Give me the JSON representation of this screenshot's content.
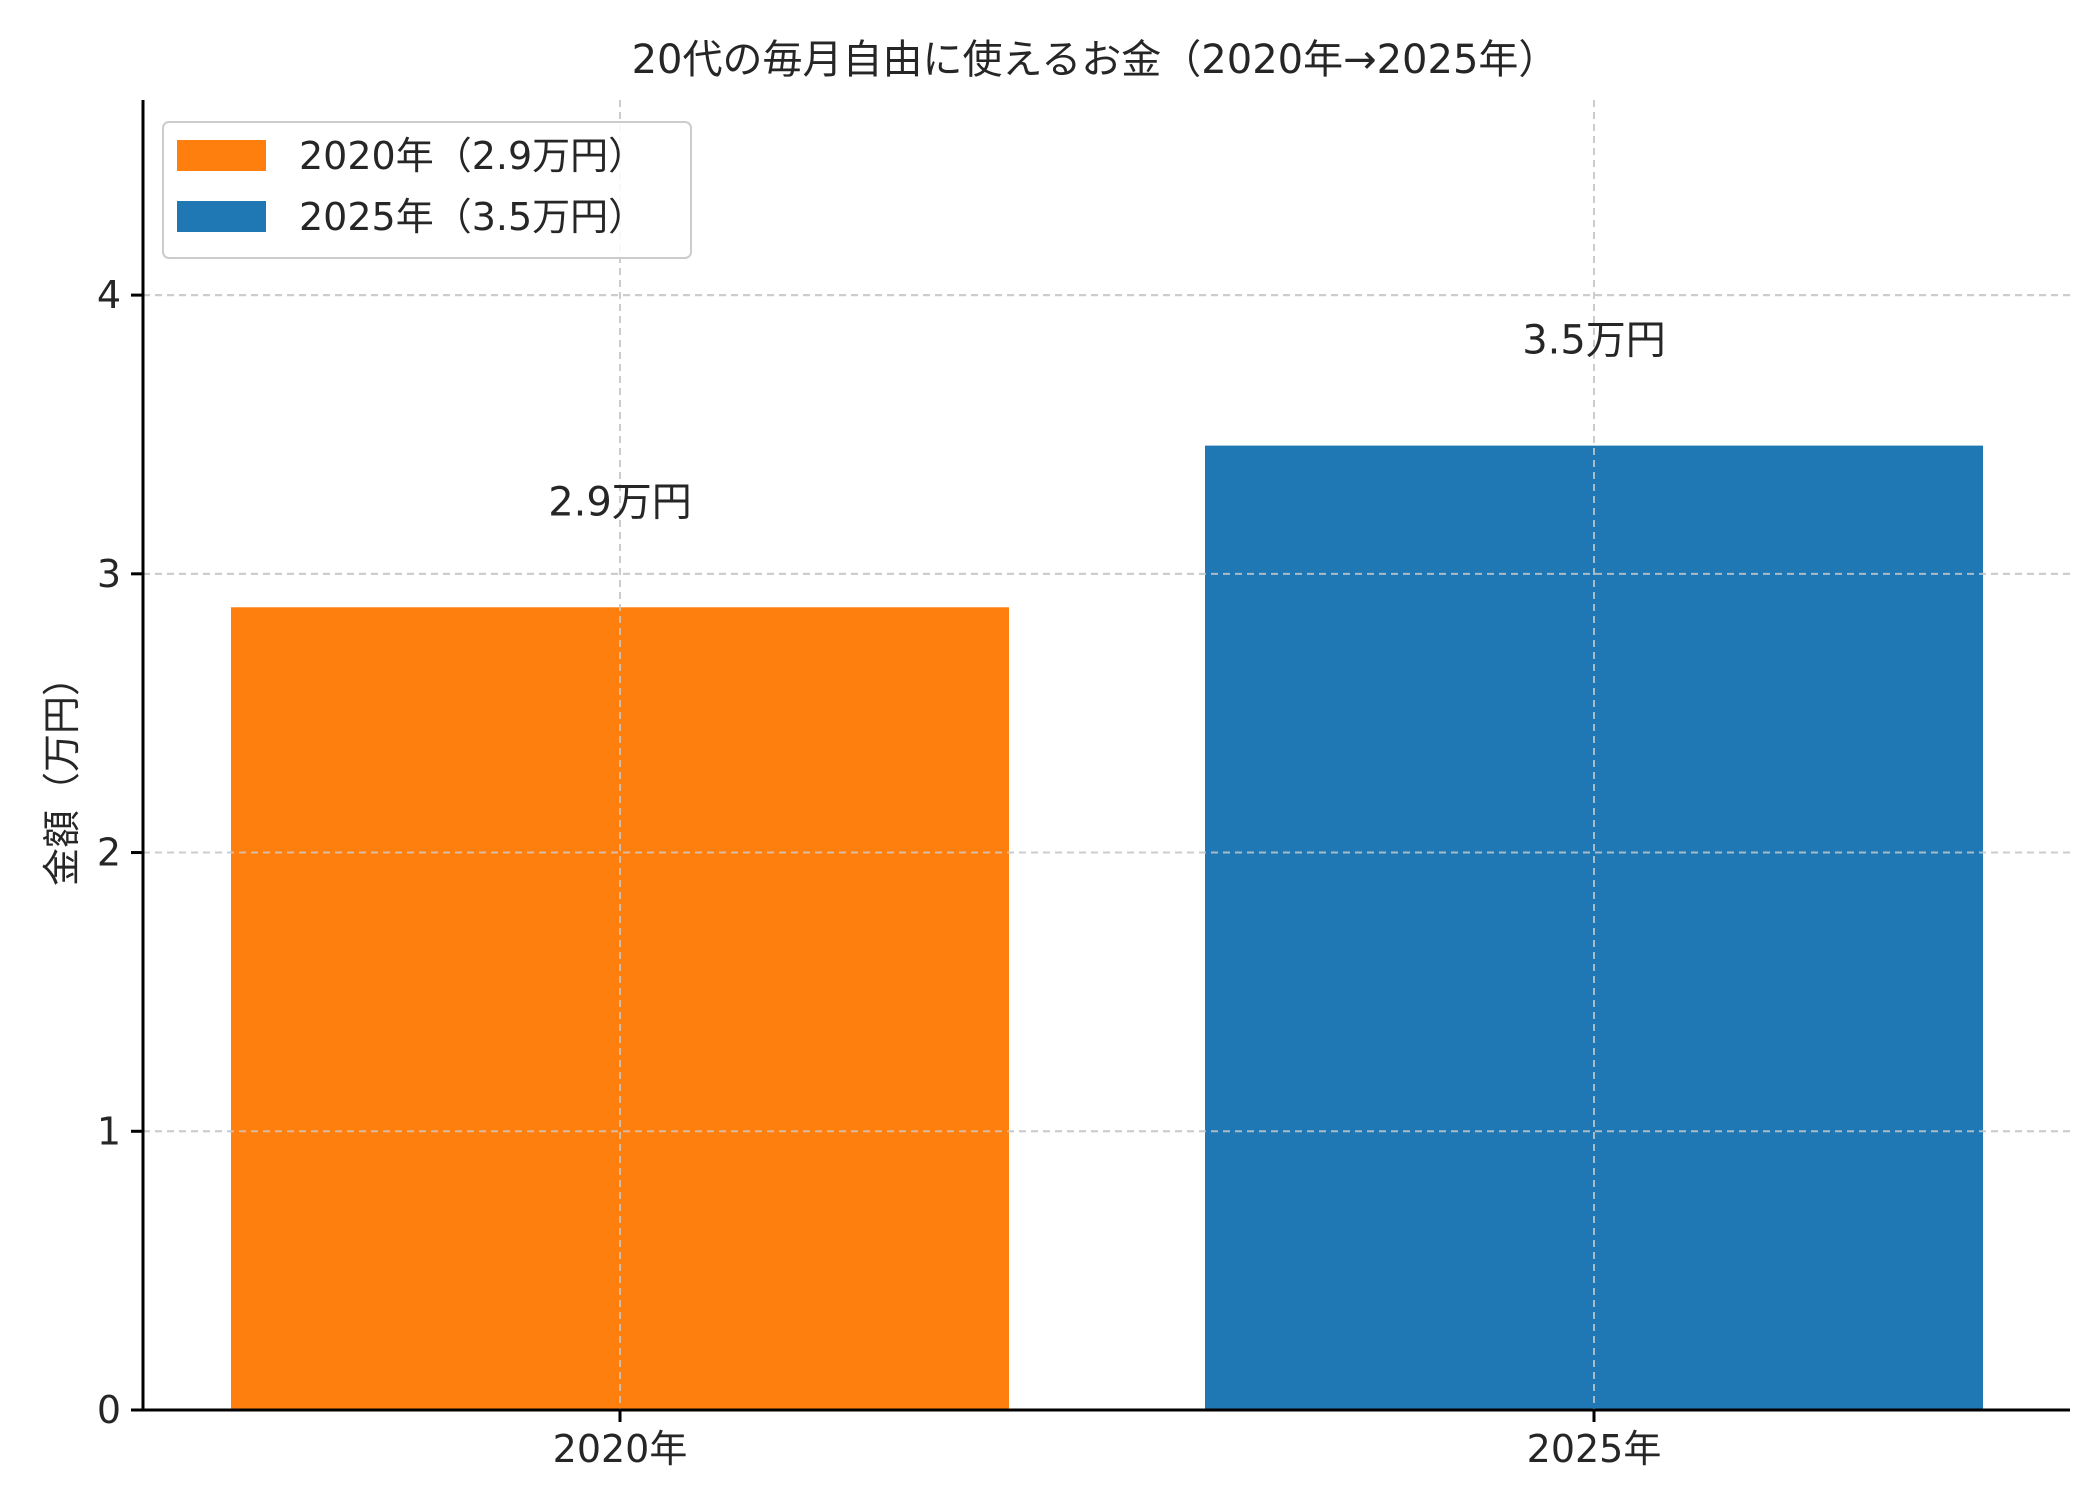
{
  "chart_data": {
    "type": "bar",
    "title": "20代の毎月自由に使えるお金（2020年→2025年）",
    "xlabel": "",
    "ylabel": "金額（万円）",
    "categories": [
      "2020年",
      "2025年"
    ],
    "values": [
      2.88,
      3.46
    ],
    "data_labels": [
      "2.9万円",
      "3.5万円"
    ],
    "colors": [
      "#ff7f0e",
      "#1f77b4"
    ],
    "ylim": [
      0,
      4.7
    ],
    "yticks": [
      0,
      1,
      2,
      3,
      4
    ],
    "grid": true,
    "legend": {
      "placement": "top-left",
      "entries": [
        {
          "label": "2020年（2.9万円）",
          "color": "#ff7f0e"
        },
        {
          "label": "2025年（3.5万円）",
          "color": "#1f77b4"
        }
      ]
    }
  }
}
